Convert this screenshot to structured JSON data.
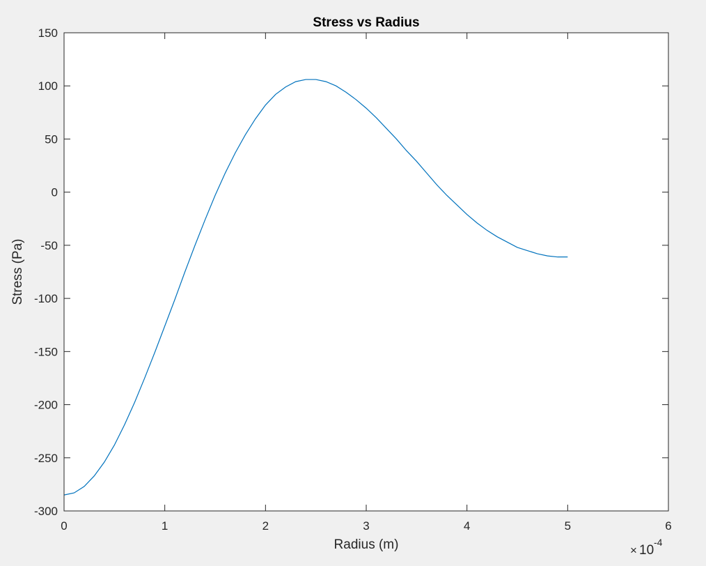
{
  "chart_data": {
    "type": "line",
    "title": "Stress vs Radius",
    "xlabel": "Radius (m)",
    "ylabel": "Stress (Pa)",
    "x_exponent_base": "10",
    "x_exponent_power": "-4",
    "xlim": [
      0,
      6
    ],
    "ylim": [
      -300,
      150
    ],
    "x_ticks": [
      0,
      1,
      2,
      3,
      4,
      5,
      6
    ],
    "y_ticks": [
      -300,
      -250,
      -200,
      -150,
      -100,
      -50,
      0,
      50,
      100,
      150
    ],
    "x_tick_labels": [
      "0",
      "1",
      "2",
      "3",
      "4",
      "5",
      "6"
    ],
    "y_tick_labels": [
      "-300",
      "-250",
      "-200",
      "-150",
      "-100",
      "-50",
      "0",
      "50",
      "100",
      "150"
    ],
    "grid": false,
    "colors": {
      "line": "#0072BD",
      "background": "#f0f0f0",
      "axes": "#ffffff"
    },
    "series": [
      {
        "x": [
          0,
          0.1,
          0.2,
          0.3,
          0.4,
          0.5,
          0.6,
          0.7,
          0.8,
          0.9,
          1.0,
          1.1,
          1.2,
          1.3,
          1.4,
          1.5,
          1.6,
          1.7,
          1.8,
          1.9,
          2.0,
          2.1,
          2.2,
          2.3,
          2.4,
          2.5,
          2.6,
          2.7,
          2.8,
          2.9,
          3.0,
          3.1,
          3.2,
          3.3,
          3.4,
          3.5,
          3.6,
          3.7,
          3.8,
          3.9,
          4.0,
          4.1,
          4.2,
          4.3,
          4.4,
          4.5,
          4.6,
          4.7,
          4.8,
          4.9,
          5.0
        ],
        "y": [
          -285,
          -283,
          -277,
          -267,
          -254,
          -238,
          -219,
          -198,
          -175,
          -151,
          -126,
          -101,
          -75,
          -50,
          -26,
          -3,
          18,
          37,
          54,
          69,
          82,
          92,
          99,
          104,
          106,
          106,
          104,
          100,
          94,
          87,
          79,
          70,
          60,
          50,
          39,
          29,
          18,
          7,
          -3,
          -12,
          -21,
          -29,
          -36,
          -42,
          -47,
          -52,
          -55,
          -58,
          -60,
          -61,
          -61
        ]
      }
    ]
  }
}
